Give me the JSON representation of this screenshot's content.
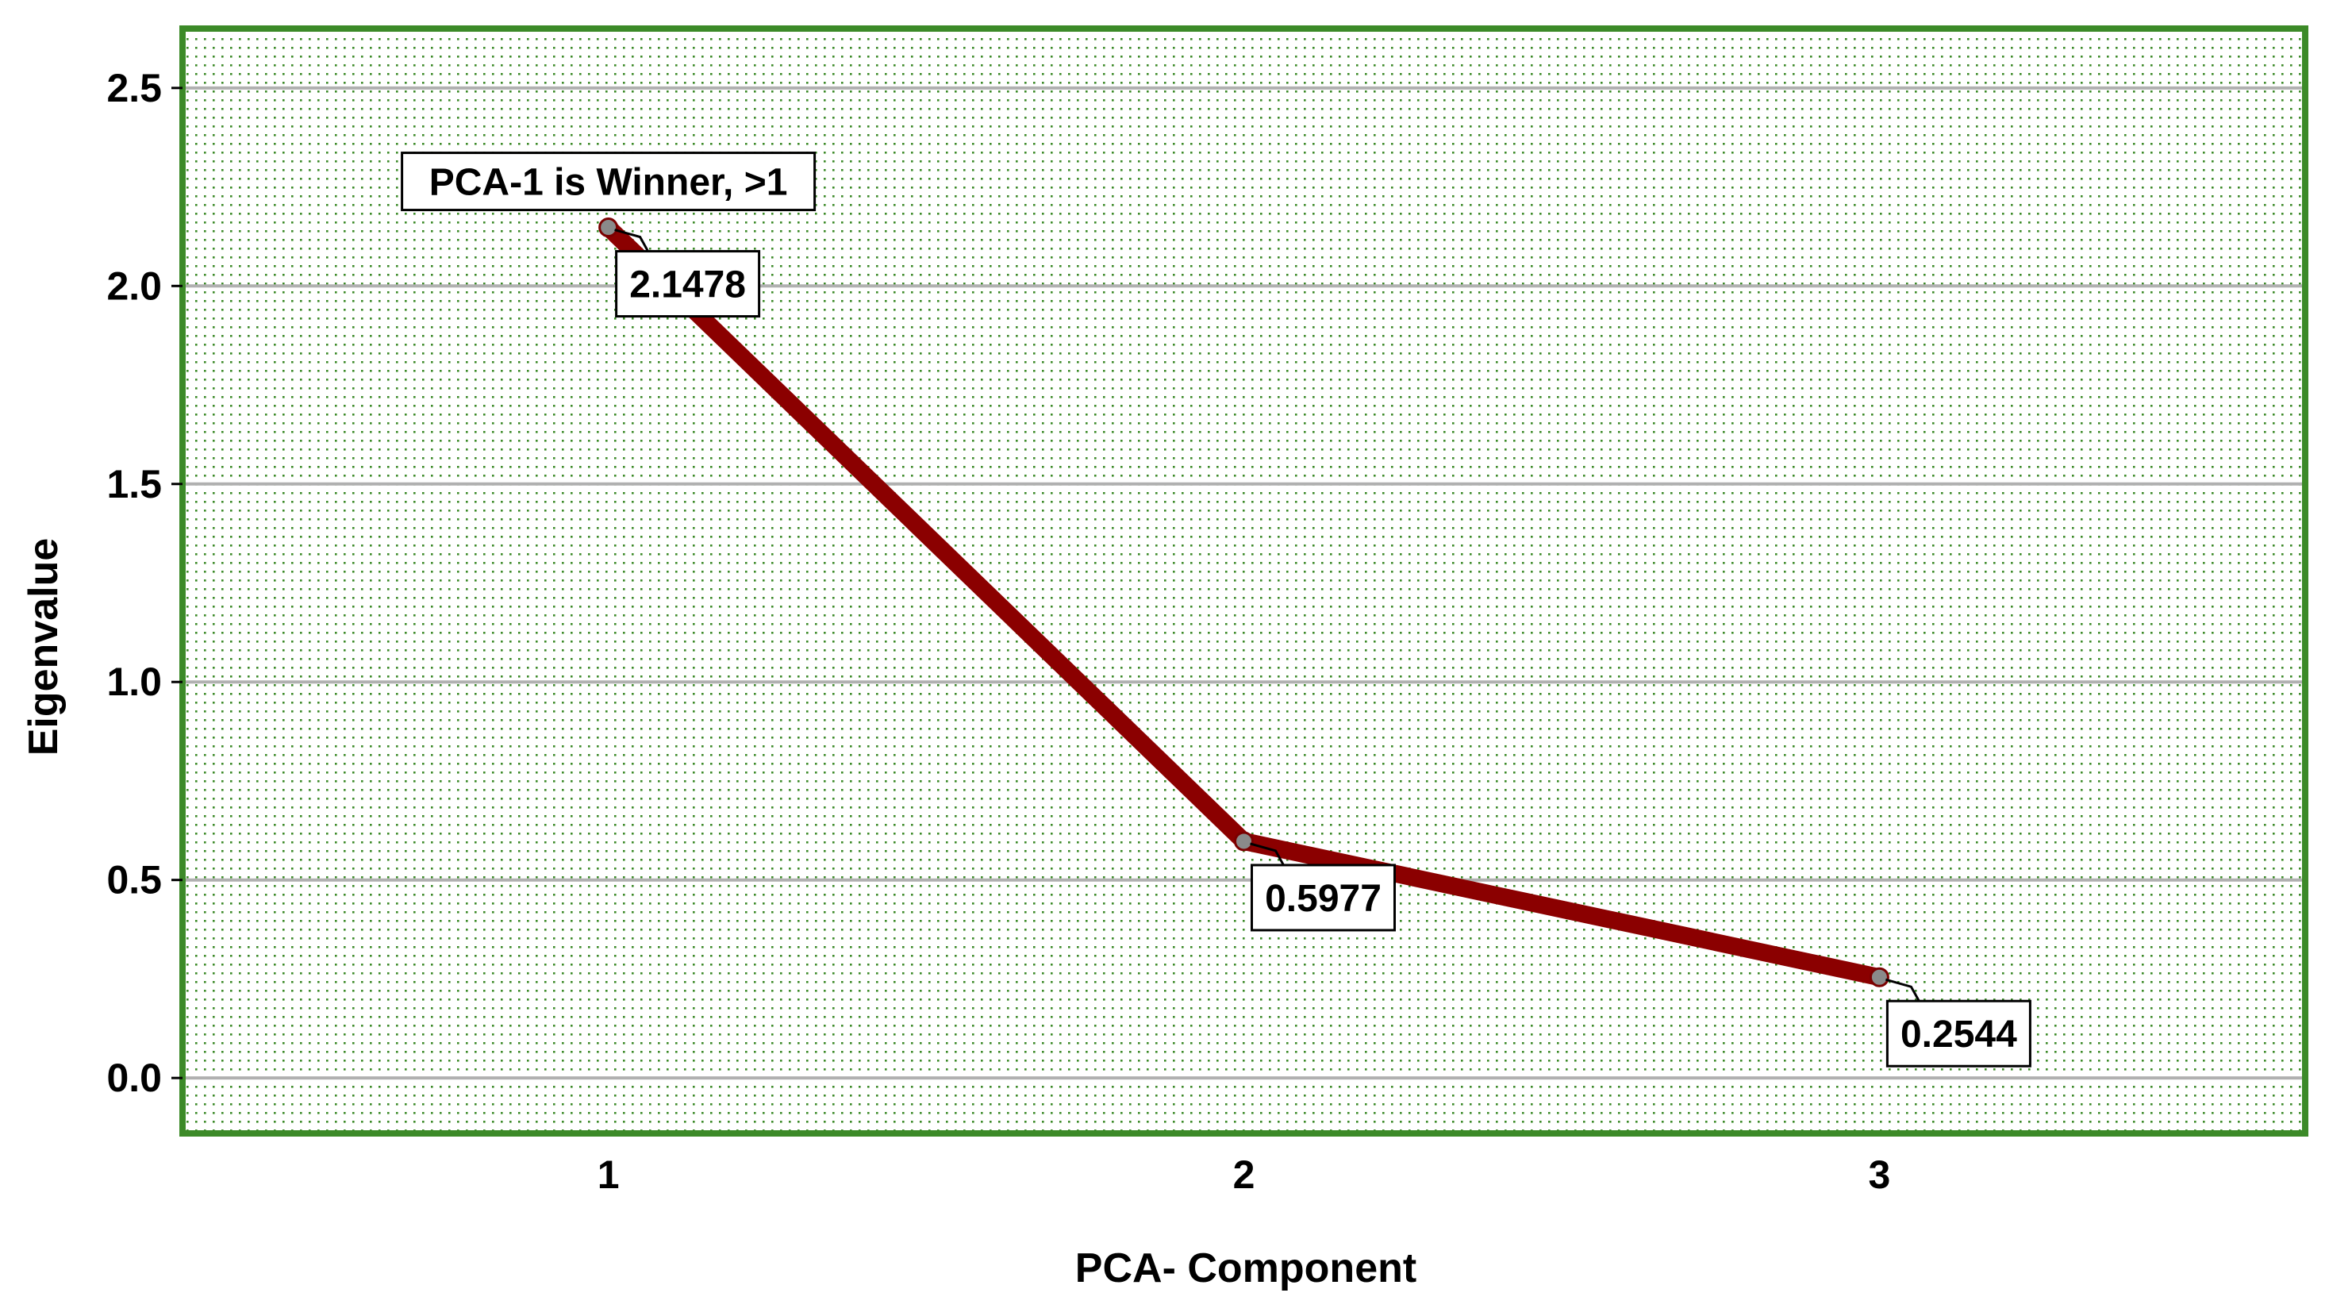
{
  "chart_data": {
    "type": "line",
    "title": "",
    "xlabel": "PCA- Component",
    "ylabel": "Eigenvalue",
    "x": [
      1,
      2,
      3
    ],
    "x_tick_labels": [
      "1",
      "2",
      "3"
    ],
    "xlim": [
      0.33,
      3.67
    ],
    "ylim": [
      -0.14,
      2.65
    ],
    "y_ticks": [
      0.0,
      0.5,
      1.0,
      1.5,
      2.0,
      2.5
    ],
    "y_tick_labels": [
      "0.0",
      "0.5",
      "1.0",
      "1.5",
      "2.0",
      "2.5"
    ],
    "grid": true,
    "legend": "none",
    "series": [
      {
        "values": [
          2.1478,
          0.5977,
          0.2544
        ],
        "data_labels": [
          "2.1478",
          "0.5977",
          "0.2544"
        ],
        "color": "#8b0000"
      }
    ],
    "annotations": [
      {
        "text": "PCA-1 is Winner, >1",
        "x": 1,
        "y": 2.1478
      }
    ],
    "colors": {
      "frame": "#3c8a28",
      "dots": "#3c8a28",
      "gridline": "#b0b0b0",
      "line": "#8b0000",
      "marker_fill": "#8a8a8a",
      "marker_stroke": "#7a0000"
    }
  }
}
